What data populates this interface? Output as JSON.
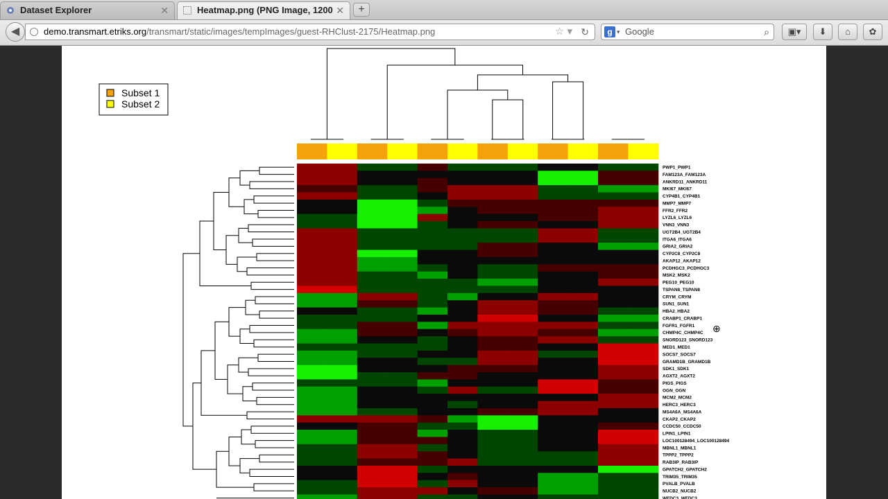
{
  "tabs": [
    {
      "label": "Dataset Explorer"
    },
    {
      "label": "Heatmap.png (PNG Image, 1200..."
    }
  ],
  "newtab_label": "+",
  "url": {
    "domain": "demo.transmart.etriks.org",
    "path": "/transmart/static/images/tempImages/guest-RHClust-2175/Heatmap.png"
  },
  "search": {
    "placeholder": "Google",
    "engine_icon": "google-icon"
  },
  "legend": [
    {
      "label": "Subset 1",
      "color": "#f5a20a"
    },
    {
      "label": "Subset 2",
      "color": "#ffff00"
    }
  ],
  "chart_data": {
    "type": "heatmap",
    "column_subsets": [
      1,
      2,
      1,
      2,
      1,
      2,
      1,
      2,
      1,
      2,
      1,
      2
    ],
    "rows": [
      "PWP1_PWP1",
      "FAM123A_FAM123A",
      "ANKRD11_ANKRD11",
      "MKI67_MKI67",
      "CYP4B1_CYP4B1",
      "MMP7_MMP7",
      "FFR2_FFR2",
      "LYZL6_LYZL6",
      "VNN3_VNN3",
      "UGT2B4_UGT2B4",
      "ITGA6_ITGA6",
      "GRIA2_GRIA2",
      "CYP2C8_CYP2C8",
      "AKAP12_AKAP12",
      "PCDHGC3_PCDHGC3",
      "MSK2_MSK2",
      "PEG10_PEG10",
      "TSPAN8_TSPAN8",
      "CRYM_CRYM",
      "SUN1_SUN1",
      "HBA2_HBA2",
      "CRABP1_CRABP1",
      "FGFR1_FGFR1",
      "CHMP4C_CHMP4C",
      "SNORD123_SNORD123",
      "MED1_MED1",
      "SOCS7_SOCS7",
      "GRAMD1B_GRAMD1B",
      "SDK1_SDK1",
      "AGXT2_AGXT2",
      "PIGS_PIGS",
      "OGN_OGN",
      "MCM2_MCM2",
      "HERC3_HERC3",
      "MS4A6A_MS4A6A",
      "CKAP2_CKAP2",
      "CCDC50_CCDC50",
      "LPIN1_LPIN1",
      "LOC100128494_LOC100128494",
      "MBNL1_MBNL1",
      "TPPP2_TPPP2",
      "RAB3IP_RAB3IP",
      "GPATCH2_GPATCH2",
      "TRIM35_TRIM35",
      "PVALB_PVALB",
      "NUCB2_NUCB2",
      "WFDC3_WFDC3"
    ],
    "values": [
      [
        -2,
        -2,
        1,
        1,
        -1,
        1,
        1,
        1,
        0,
        0,
        1,
        1
      ],
      [
        -2,
        -2,
        0,
        0,
        0,
        0,
        0,
        0,
        3,
        3,
        -1,
        -1
      ],
      [
        -2,
        -2,
        0,
        0,
        -1,
        0,
        0,
        0,
        3,
        3,
        -1,
        -1
      ],
      [
        -1,
        -1,
        1,
        1,
        -1,
        -2,
        -2,
        -2,
        1,
        1,
        2,
        2
      ],
      [
        -2,
        -2,
        1,
        1,
        0,
        -2,
        -2,
        -2,
        1,
        1,
        1,
        1
      ],
      [
        0,
        0,
        3,
        3,
        1,
        -1,
        -1,
        -1,
        -1,
        -1,
        -1,
        -1
      ],
      [
        0,
        0,
        3,
        3,
        2,
        0,
        -1,
        -1,
        -1,
        -1,
        -2,
        -2
      ],
      [
        1,
        1,
        3,
        3,
        -2,
        0,
        0,
        0,
        -1,
        -1,
        -2,
        -2
      ],
      [
        1,
        1,
        3,
        3,
        1,
        0,
        -1,
        -1,
        0,
        0,
        -2,
        -2
      ],
      [
        -2,
        -2,
        1,
        1,
        1,
        1,
        1,
        1,
        -2,
        -2,
        1,
        1
      ],
      [
        -2,
        -2,
        1,
        1,
        1,
        1,
        1,
        1,
        -2,
        -2,
        1,
        1
      ],
      [
        -2,
        -2,
        1,
        1,
        1,
        1,
        -1,
        -1,
        0,
        0,
        2,
        2
      ],
      [
        -2,
        -2,
        3,
        3,
        0,
        0,
        -1,
        -1,
        0,
        0,
        0,
        0
      ],
      [
        -2,
        -2,
        2,
        2,
        0,
        0,
        0,
        0,
        0,
        0,
        0,
        0
      ],
      [
        -2,
        -2,
        2,
        2,
        1,
        0,
        1,
        1,
        -1,
        -1,
        -1,
        -1
      ],
      [
        -2,
        -2,
        1,
        1,
        2,
        0,
        1,
        1,
        0,
        0,
        -1,
        -1
      ],
      [
        -2,
        -2,
        1,
        1,
        1,
        1,
        2,
        2,
        0,
        0,
        -2,
        -2
      ],
      [
        -3,
        -3,
        1,
        1,
        1,
        1,
        1,
        1,
        0,
        0,
        0,
        0
      ],
      [
        2,
        2,
        -2,
        -2,
        1,
        2,
        0,
        0,
        -2,
        -2,
        0,
        0
      ],
      [
        2,
        2,
        -1,
        -1,
        1,
        0,
        -2,
        -2,
        -1,
        -1,
        0,
        0
      ],
      [
        0,
        0,
        1,
        1,
        2,
        0,
        -2,
        -2,
        -1,
        -1,
        1,
        1
      ],
      [
        1,
        1,
        1,
        1,
        0,
        0,
        -3,
        -3,
        0,
        0,
        2,
        2
      ],
      [
        1,
        1,
        -1,
        -1,
        2,
        -2,
        -2,
        -2,
        -2,
        -2,
        1,
        1
      ],
      [
        2,
        2,
        -1,
        -1,
        0,
        -1,
        -2,
        -2,
        -1,
        -1,
        2,
        2
      ],
      [
        2,
        2,
        0,
        0,
        1,
        0,
        -1,
        -1,
        -2,
        -2,
        1,
        1
      ],
      [
        1,
        1,
        1,
        1,
        1,
        0,
        -1,
        -1,
        0,
        0,
        -3,
        -3
      ],
      [
        2,
        2,
        1,
        1,
        0,
        0,
        -2,
        -2,
        1,
        1,
        -3,
        -3
      ],
      [
        2,
        2,
        0,
        0,
        1,
        1,
        -2,
        -2,
        0,
        0,
        -3,
        -3
      ],
      [
        3,
        3,
        0,
        0,
        0,
        -1,
        -1,
        -1,
        0,
        0,
        -2,
        -2
      ],
      [
        3,
        3,
        1,
        1,
        -1,
        -1,
        0,
        0,
        0,
        0,
        -2,
        -2
      ],
      [
        1,
        1,
        1,
        1,
        2,
        0,
        0,
        0,
        -3,
        -3,
        -1,
        -1
      ],
      [
        2,
        2,
        0,
        0,
        1,
        -2,
        1,
        1,
        -3,
        -3,
        -1,
        -1
      ],
      [
        2,
        2,
        0,
        0,
        0,
        0,
        0,
        0,
        0,
        0,
        -2,
        -2
      ],
      [
        2,
        2,
        0,
        0,
        0,
        1,
        0,
        0,
        -2,
        -2,
        -2,
        -2
      ],
      [
        2,
        2,
        1,
        1,
        0,
        0,
        -1,
        -1,
        -2,
        -2,
        0,
        0
      ],
      [
        -2,
        -2,
        -2,
        -2,
        -1,
        2,
        3,
        3,
        0,
        0,
        0,
        0
      ],
      [
        0,
        0,
        -1,
        -1,
        1,
        1,
        3,
        3,
        0,
        0,
        -1,
        -1
      ],
      [
        2,
        2,
        -1,
        -1,
        2,
        0,
        1,
        1,
        0,
        0,
        -3,
        -3
      ],
      [
        2,
        2,
        -1,
        -1,
        -1,
        0,
        1,
        1,
        0,
        0,
        -3,
        -3
      ],
      [
        1,
        1,
        -2,
        -2,
        1,
        0,
        1,
        1,
        0,
        0,
        -2,
        -2
      ],
      [
        1,
        1,
        -2,
        -2,
        -1,
        0,
        1,
        1,
        1,
        1,
        -2,
        -2
      ],
      [
        1,
        1,
        -1,
        -1,
        -1,
        -2,
        1,
        1,
        1,
        1,
        -2,
        -2
      ],
      [
        0,
        0,
        -3,
        -3,
        1,
        0,
        0,
        0,
        0,
        0,
        3,
        3
      ],
      [
        0,
        0,
        -3,
        -3,
        0,
        -1,
        0,
        0,
        2,
        2,
        1,
        1
      ],
      [
        1,
        1,
        -3,
        -3,
        1,
        -2,
        0,
        0,
        2,
        2,
        1,
        1
      ],
      [
        1,
        1,
        -2,
        -2,
        -2,
        0,
        -1,
        -1,
        2,
        2,
        1,
        1
      ],
      [
        2,
        2,
        -2,
        -2,
        1,
        1,
        0,
        0,
        1,
        1,
        1,
        1
      ]
    ]
  }
}
